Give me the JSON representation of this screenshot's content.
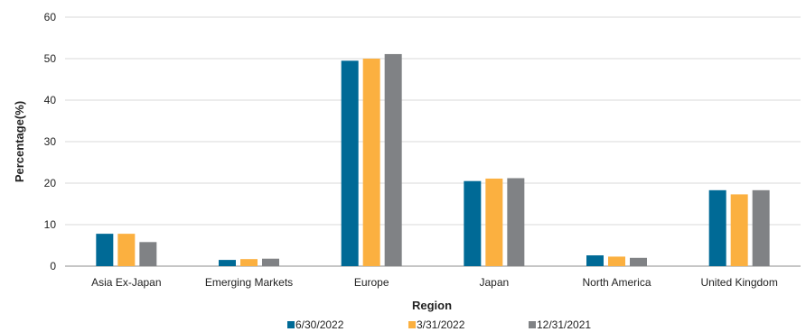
{
  "chart_data": {
    "type": "bar",
    "title": "",
    "xlabel": "Region",
    "ylabel": "Percentage(%)",
    "ylim": [
      0,
      60
    ],
    "yticks": [
      0,
      10,
      20,
      30,
      40,
      50,
      60
    ],
    "grid": "horizontal",
    "legend_position": "bottom",
    "categories": [
      "Asia Ex-Japan",
      "Emerging Markets",
      "Europe",
      "Japan",
      "North America",
      "United Kingdom"
    ],
    "series": [
      {
        "name": "6/30/2022",
        "color": "#006a96",
        "values": [
          7.8,
          1.5,
          49.5,
          20.5,
          2.6,
          18.3
        ]
      },
      {
        "name": "3/31/2022",
        "color": "#fbb040",
        "values": [
          7.8,
          1.7,
          50.0,
          21.1,
          2.3,
          17.3
        ]
      },
      {
        "name": "12/31/2021",
        "color": "#808285",
        "values": [
          5.8,
          1.8,
          51.1,
          21.2,
          2.0,
          18.3
        ]
      }
    ]
  }
}
